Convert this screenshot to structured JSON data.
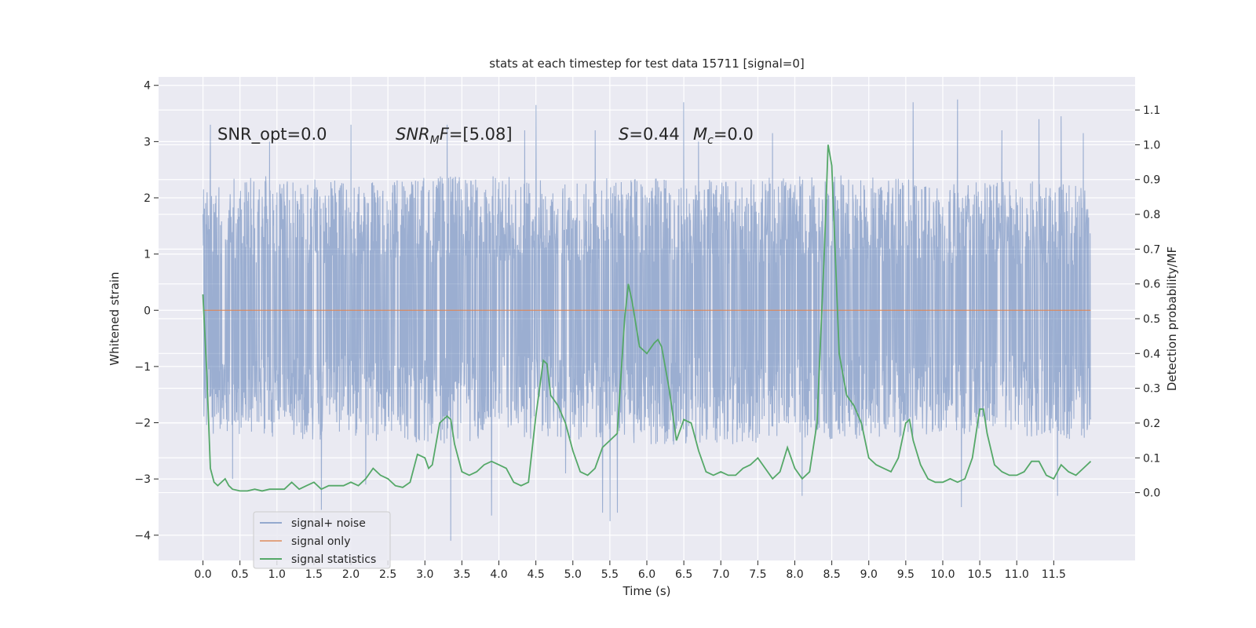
{
  "chart_data": {
    "type": "line",
    "title": "stats at each timestep for test data 15711 [signal=0]",
    "xlabel": "Time (s)",
    "ylabel": "Whitened strain",
    "y2label": "Detection probability/MF",
    "xlim": [
      -0.6,
      12.6
    ],
    "ylim": [
      -4.45,
      4.15
    ],
    "y2lim": [
      -0.195,
      1.195
    ],
    "xticks": [
      "0.0",
      "0.5",
      "1.0",
      "1.5",
      "2.0",
      "2.5",
      "3.0",
      "3.5",
      "4.0",
      "4.5",
      "5.0",
      "5.5",
      "6.0",
      "6.5",
      "7.0",
      "7.5",
      "8.0",
      "8.5",
      "9.0",
      "9.5",
      "10.0",
      "10.5",
      "11.0",
      "11.5"
    ],
    "yticks": [
      "4",
      "3",
      "2",
      "1",
      "0",
      "−1",
      "−2",
      "−3",
      "−4"
    ],
    "y2ticks": [
      "1.1",
      "1.0",
      "0.9",
      "0.8",
      "0.7",
      "0.6",
      "0.5",
      "0.4",
      "0.3",
      "0.2",
      "0.1",
      "0.0"
    ],
    "grid": true,
    "legend_position": "lower-left",
    "annotations": [
      {
        "parts": [
          {
            "t": "SNR_opt=0.0",
            "i": false
          }
        ]
      },
      {
        "parts": [
          {
            "t": "SNR",
            "i": true
          },
          {
            "t": "M",
            "i": true,
            "sub": true
          },
          {
            "t": "F",
            "i": true
          },
          {
            "t": "=[5.08]",
            "i": false
          }
        ]
      },
      {
        "parts": [
          {
            "t": "S",
            "i": true
          },
          {
            "t": "=0.44",
            "i": false
          }
        ]
      },
      {
        "parts": [
          {
            "t": "M",
            "i": true
          },
          {
            "t": "c",
            "i": true,
            "sub": true
          },
          {
            "t": "=0.0",
            "i": false
          }
        ]
      }
    ],
    "series": [
      {
        "name": "signal+ noise",
        "color": "#4c72b0",
        "axis": "left",
        "t_start": 0.0,
        "t_end": 12.0,
        "envelope": {
          "t": [
            0.0,
            1.0,
            2.0,
            3.0,
            4.0,
            5.0,
            6.0,
            7.0,
            8.0,
            9.0,
            10.0,
            11.0,
            12.0
          ],
          "upper": [
            2.3,
            2.4,
            2.3,
            2.4,
            2.4,
            2.3,
            2.4,
            2.3,
            2.4,
            2.4,
            2.3,
            2.3,
            2.3
          ],
          "lower": [
            -2.2,
            -2.3,
            -2.3,
            -2.4,
            -2.3,
            -2.3,
            -2.4,
            -2.4,
            -2.3,
            -2.3,
            -2.3,
            -2.3,
            -2.3
          ]
        },
        "peaks": [
          {
            "t": 0.1,
            "v": 3.3
          },
          {
            "t": 0.4,
            "v": -3.0
          },
          {
            "t": 0.9,
            "v": 3.0
          },
          {
            "t": 1.6,
            "v": -3.55
          },
          {
            "t": 2.0,
            "v": 3.3
          },
          {
            "t": 2.2,
            "v": -3.1
          },
          {
            "t": 3.3,
            "v": 3.3
          },
          {
            "t": 3.35,
            "v": -4.1
          },
          {
            "t": 3.9,
            "v": -3.65
          },
          {
            "t": 4.35,
            "v": 3.2
          },
          {
            "t": 4.5,
            "v": 3.65
          },
          {
            "t": 4.9,
            "v": -2.9
          },
          {
            "t": 5.3,
            "v": 3.2
          },
          {
            "t": 5.4,
            "v": -3.6
          },
          {
            "t": 5.5,
            "v": -3.75
          },
          {
            "t": 5.6,
            "v": -3.6
          },
          {
            "t": 6.5,
            "v": 3.7
          },
          {
            "t": 6.7,
            "v": 3.0
          },
          {
            "t": 7.7,
            "v": 3.15
          },
          {
            "t": 8.1,
            "v": -3.3
          },
          {
            "t": 9.6,
            "v": 3.7
          },
          {
            "t": 10.2,
            "v": 3.75
          },
          {
            "t": 10.25,
            "v": -3.5
          },
          {
            "t": 10.8,
            "v": 3.2
          },
          {
            "t": 11.3,
            "v": 3.4
          },
          {
            "t": 11.55,
            "v": -3.3
          },
          {
            "t": 11.6,
            "v": 3.45
          },
          {
            "t": 11.9,
            "v": 3.15
          }
        ]
      },
      {
        "name": "signal only",
        "color": "#dd8452",
        "axis": "left",
        "x": [
          0.0,
          12.0
        ],
        "y": [
          0.0,
          0.0
        ]
      },
      {
        "name": "signal statistics",
        "color": "#55a868",
        "axis": "right",
        "x": [
          0.0,
          0.05,
          0.1,
          0.15,
          0.2,
          0.3,
          0.35,
          0.4,
          0.5,
          0.6,
          0.7,
          0.8,
          0.9,
          1.0,
          1.1,
          1.2,
          1.3,
          1.4,
          1.5,
          1.6,
          1.7,
          1.8,
          1.9,
          2.0,
          2.1,
          2.2,
          2.3,
          2.4,
          2.5,
          2.6,
          2.7,
          2.8,
          2.9,
          3.0,
          3.05,
          3.1,
          3.2,
          3.3,
          3.35,
          3.4,
          3.5,
          3.6,
          3.7,
          3.8,
          3.9,
          4.0,
          4.1,
          4.2,
          4.3,
          4.4,
          4.5,
          4.6,
          4.65,
          4.7,
          4.8,
          4.9,
          5.0,
          5.1,
          5.2,
          5.3,
          5.4,
          5.5,
          5.6,
          5.7,
          5.75,
          5.8,
          5.9,
          6.0,
          6.1,
          6.15,
          6.2,
          6.3,
          6.4,
          6.5,
          6.6,
          6.7,
          6.8,
          6.9,
          7.0,
          7.1,
          7.2,
          7.3,
          7.4,
          7.5,
          7.6,
          7.7,
          7.8,
          7.9,
          8.0,
          8.1,
          8.2,
          8.3,
          8.4,
          8.45,
          8.5,
          8.6,
          8.7,
          8.8,
          8.9,
          9.0,
          9.1,
          9.2,
          9.3,
          9.4,
          9.5,
          9.55,
          9.6,
          9.7,
          9.8,
          9.9,
          10.0,
          10.1,
          10.2,
          10.3,
          10.4,
          10.5,
          10.55,
          10.6,
          10.7,
          10.8,
          10.9,
          11.0,
          11.1,
          11.2,
          11.3,
          11.4,
          11.5,
          11.6,
          11.7,
          11.8,
          11.9,
          12.0
        ],
        "y": [
          0.57,
          0.35,
          0.07,
          0.03,
          0.02,
          0.04,
          0.02,
          0.01,
          0.005,
          0.005,
          0.01,
          0.005,
          0.01,
          0.01,
          0.01,
          0.03,
          0.01,
          0.02,
          0.03,
          0.01,
          0.02,
          0.02,
          0.02,
          0.03,
          0.02,
          0.04,
          0.07,
          0.05,
          0.04,
          0.02,
          0.015,
          0.03,
          0.11,
          0.1,
          0.07,
          0.08,
          0.2,
          0.22,
          0.21,
          0.14,
          0.06,
          0.05,
          0.06,
          0.08,
          0.09,
          0.08,
          0.07,
          0.03,
          0.02,
          0.03,
          0.22,
          0.38,
          0.37,
          0.28,
          0.25,
          0.2,
          0.12,
          0.06,
          0.05,
          0.07,
          0.13,
          0.15,
          0.17,
          0.5,
          0.6,
          0.55,
          0.42,
          0.4,
          0.43,
          0.44,
          0.42,
          0.3,
          0.15,
          0.21,
          0.2,
          0.12,
          0.06,
          0.05,
          0.06,
          0.05,
          0.05,
          0.07,
          0.08,
          0.1,
          0.07,
          0.04,
          0.06,
          0.13,
          0.07,
          0.04,
          0.06,
          0.2,
          0.7,
          1.0,
          0.94,
          0.4,
          0.28,
          0.25,
          0.2,
          0.1,
          0.08,
          0.07,
          0.06,
          0.1,
          0.2,
          0.21,
          0.15,
          0.08,
          0.04,
          0.03,
          0.03,
          0.04,
          0.03,
          0.04,
          0.1,
          0.24,
          0.24,
          0.17,
          0.08,
          0.06,
          0.05,
          0.05,
          0.06,
          0.09,
          0.09,
          0.05,
          0.04,
          0.08,
          0.06,
          0.05,
          0.07,
          0.09
        ]
      }
    ]
  }
}
